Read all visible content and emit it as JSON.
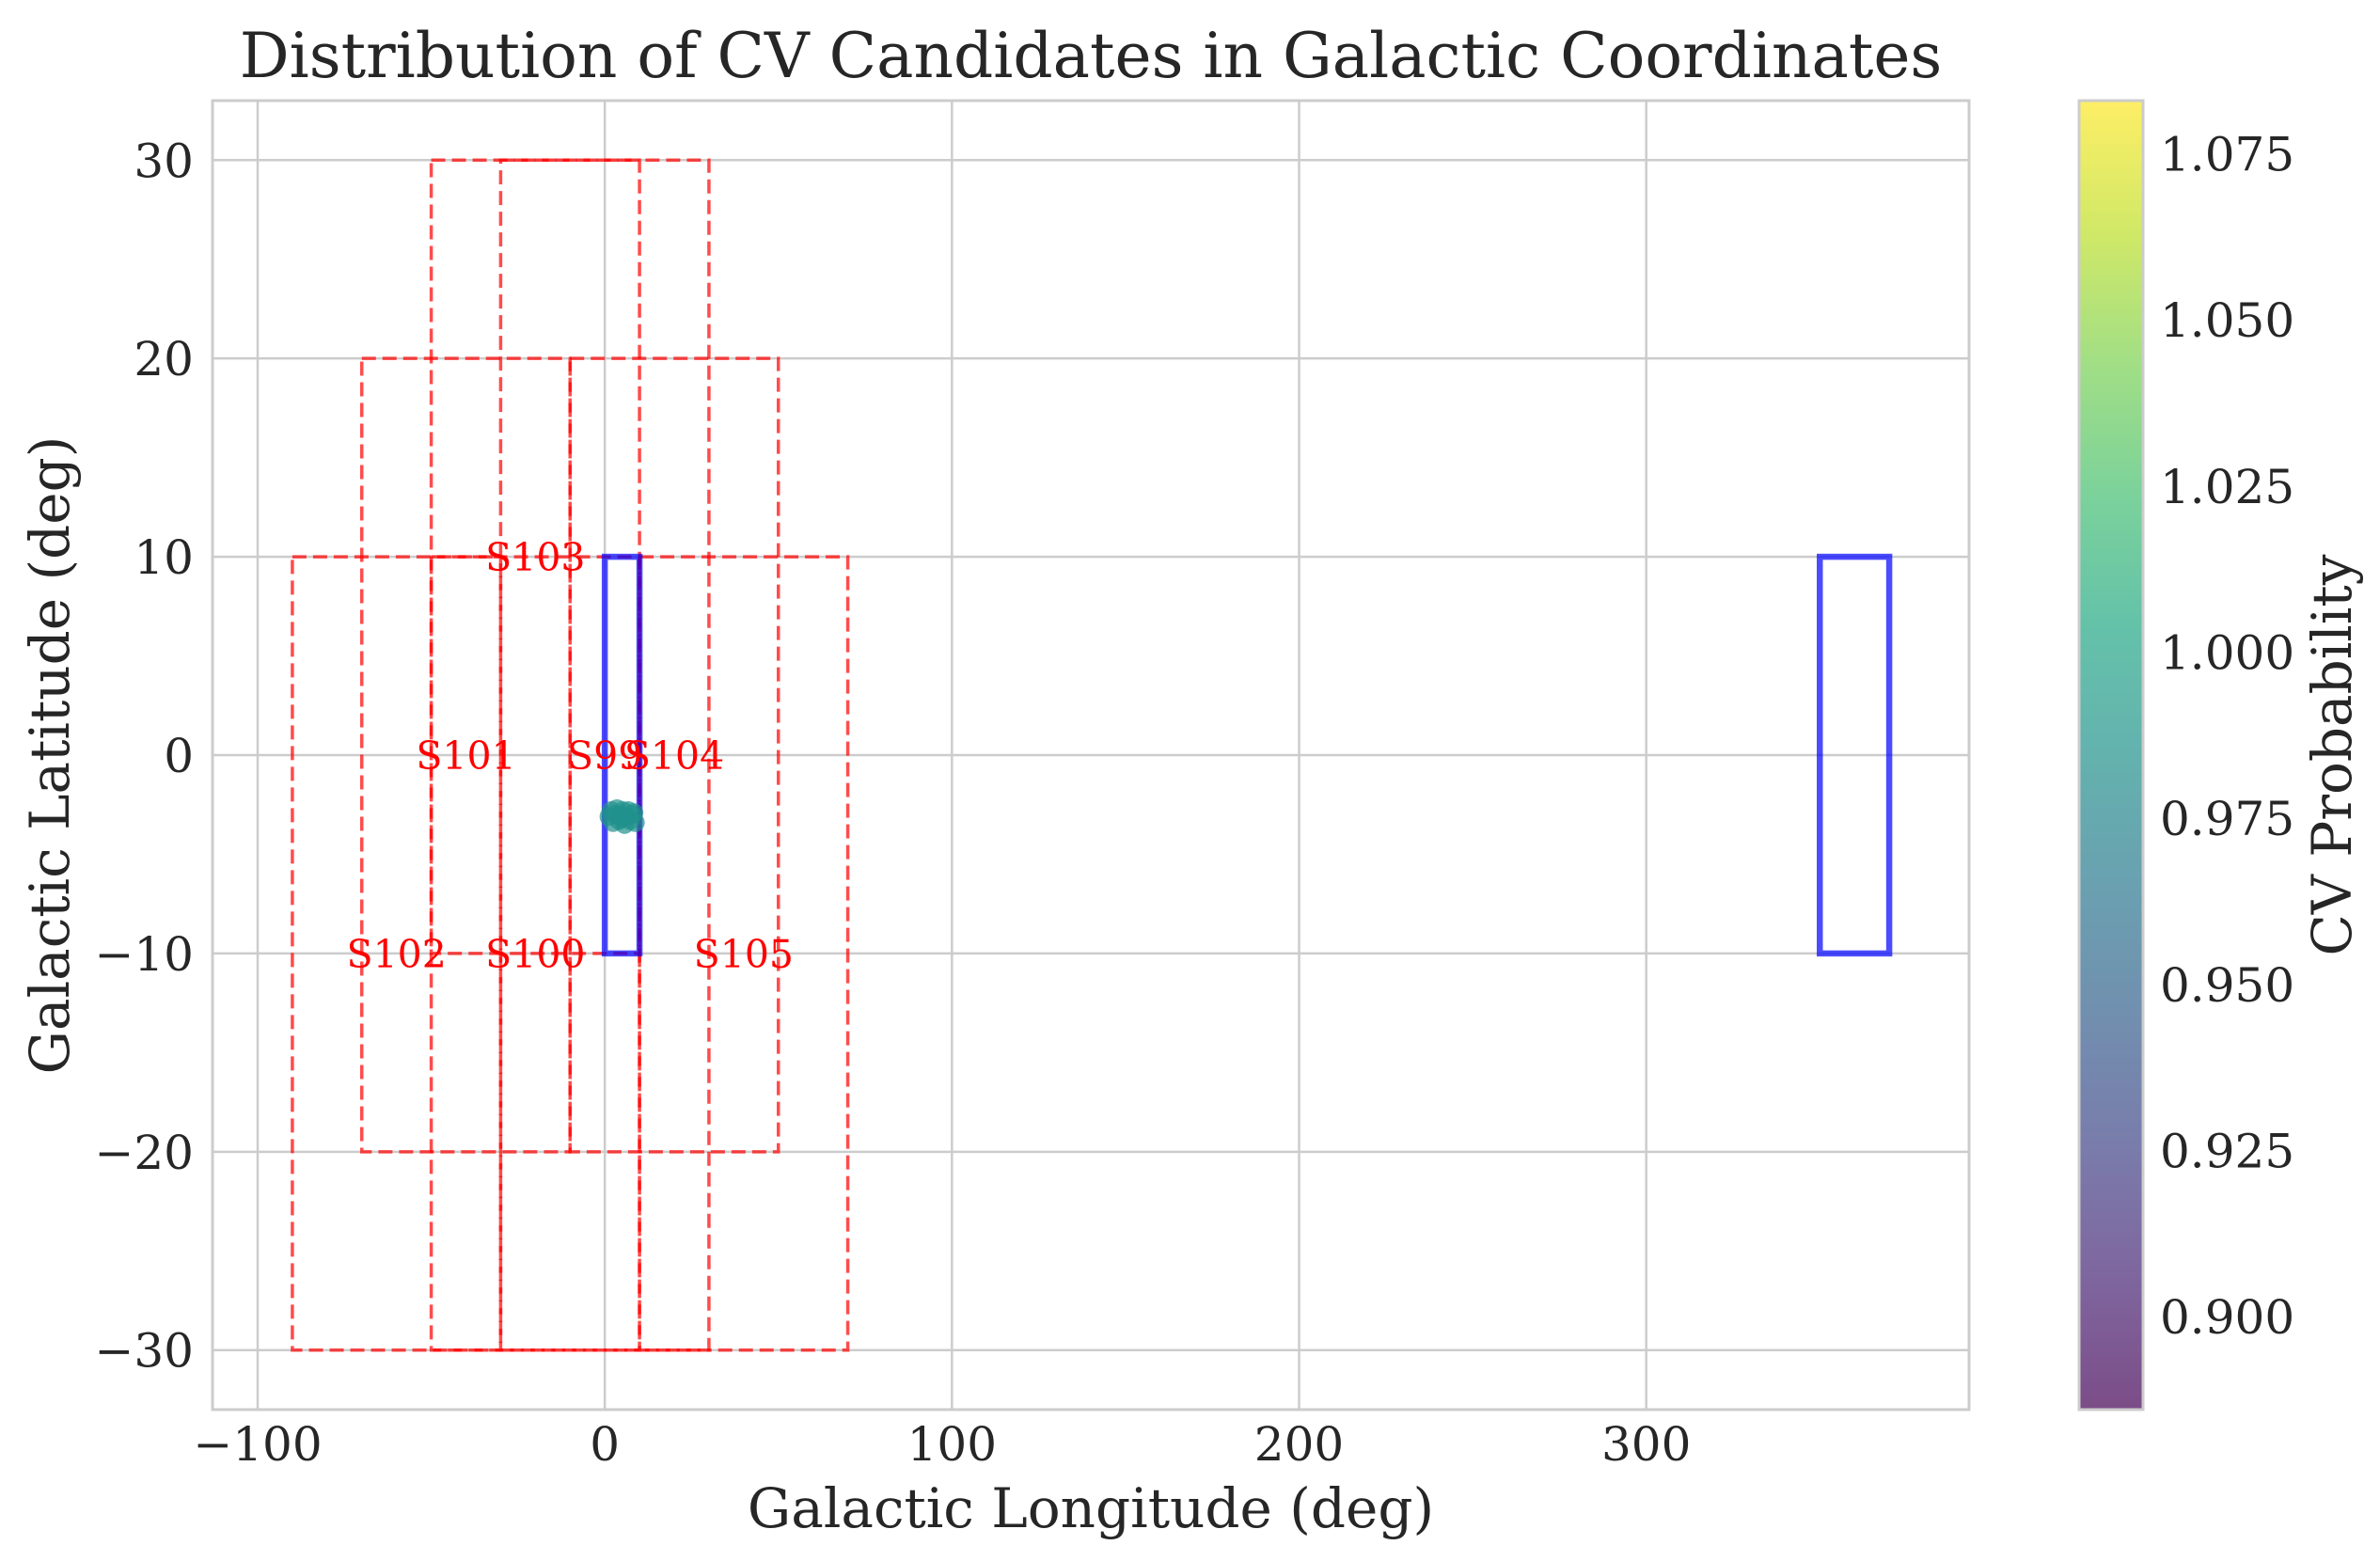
{
  "chart_data": {
    "type": "scatter",
    "title": "Distribution of CV Candidates in Galactic Coordinates",
    "xlabel": "Galactic Longitude (deg)",
    "ylabel": "Galactic Latitude (deg)",
    "xlim": [
      -113,
      393
    ],
    "ylim": [
      -33,
      33
    ],
    "grid": true,
    "x_ticks": [
      {
        "value": -100,
        "label": "−100"
      },
      {
        "value": 0,
        "label": "0"
      },
      {
        "value": 100,
        "label": "100"
      },
      {
        "value": 200,
        "label": "200"
      },
      {
        "value": 300,
        "label": "300"
      }
    ],
    "y_ticks": [
      {
        "value": 30,
        "label": "30"
      },
      {
        "value": 20,
        "label": "20"
      },
      {
        "value": 10,
        "label": "10"
      },
      {
        "value": 0,
        "label": "0"
      },
      {
        "value": -10,
        "label": "−10"
      },
      {
        "value": -20,
        "label": "−20"
      },
      {
        "value": -30,
        "label": "−30"
      }
    ],
    "survey_fields": [
      {
        "label": "S99",
        "l": [
          -30,
          30
        ],
        "b": [
          -30,
          30
        ]
      },
      {
        "label": "S100",
        "l": [
          -50,
          10
        ],
        "b": [
          -30,
          10
        ]
      },
      {
        "label": "S101",
        "l": [
          -70,
          -10
        ],
        "b": [
          -20,
          20
        ]
      },
      {
        "label": "S102",
        "l": [
          -90,
          -30
        ],
        "b": [
          -30,
          10
        ]
      },
      {
        "label": "S103",
        "l": [
          -50,
          10
        ],
        "b": [
          -10,
          30
        ]
      },
      {
        "label": "S104",
        "l": [
          -10,
          50
        ],
        "b": [
          -20,
          20
        ]
      },
      {
        "label": "S105",
        "l": [
          10,
          70
        ],
        "b": [
          -30,
          10
        ]
      }
    ],
    "highlight_regions": [
      {
        "l": [
          0,
          10
        ],
        "b": [
          -10,
          10
        ]
      },
      {
        "l": [
          350,
          370
        ],
        "b": [
          -10,
          10
        ]
      }
    ],
    "candidates": [
      {
        "l": 1.2,
        "b": -3.1,
        "cv_probability": 0.985
      },
      {
        "l": 1.8,
        "b": -2.8,
        "cv_probability": 0.985
      },
      {
        "l": 2.4,
        "b": -3.4,
        "cv_probability": 0.985
      },
      {
        "l": 3.0,
        "b": -3.0,
        "cv_probability": 0.985
      },
      {
        "l": 3.5,
        "b": -2.7,
        "cv_probability": 0.985
      },
      {
        "l": 4.1,
        "b": -3.3,
        "cv_probability": 0.985
      },
      {
        "l": 4.6,
        "b": -3.0,
        "cv_probability": 0.985
      },
      {
        "l": 5.0,
        "b": -3.2,
        "cv_probability": 0.985
      },
      {
        "l": 5.2,
        "b": -2.8,
        "cv_probability": 0.985
      },
      {
        "l": 5.7,
        "b": -3.5,
        "cv_probability": 0.985
      },
      {
        "l": 6.3,
        "b": -3.1,
        "cv_probability": 0.985
      },
      {
        "l": 6.8,
        "b": -2.8,
        "cv_probability": 0.985
      },
      {
        "l": 7.3,
        "b": -3.3,
        "cv_probability": 0.985
      },
      {
        "l": 7.9,
        "b": -3.0,
        "cv_probability": 0.985
      },
      {
        "l": 8.4,
        "b": -2.9,
        "cv_probability": 0.985
      },
      {
        "l": 8.8,
        "b": -3.4,
        "cv_probability": 0.985
      }
    ],
    "colorbar": {
      "label": "CV Probability",
      "colormap": "viridis",
      "range": [
        0.886,
        1.083
      ],
      "ticks": [
        {
          "value": 0.9,
          "label": "0.900"
        },
        {
          "value": 0.925,
          "label": "0.925"
        },
        {
          "value": 0.95,
          "label": "0.950"
        },
        {
          "value": 0.975,
          "label": "0.975"
        },
        {
          "value": 1.0,
          "label": "1.000"
        },
        {
          "value": 1.025,
          "label": "1.025"
        },
        {
          "value": 1.05,
          "label": "1.050"
        },
        {
          "value": 1.075,
          "label": "1.075"
        }
      ]
    },
    "colors": {
      "survey_field_edge": "#ff0000",
      "survey_field_label": "#ff0000",
      "highlight_region_edge": "#0000ff",
      "grid": "#cccccc",
      "spine": "#cccccc"
    }
  }
}
